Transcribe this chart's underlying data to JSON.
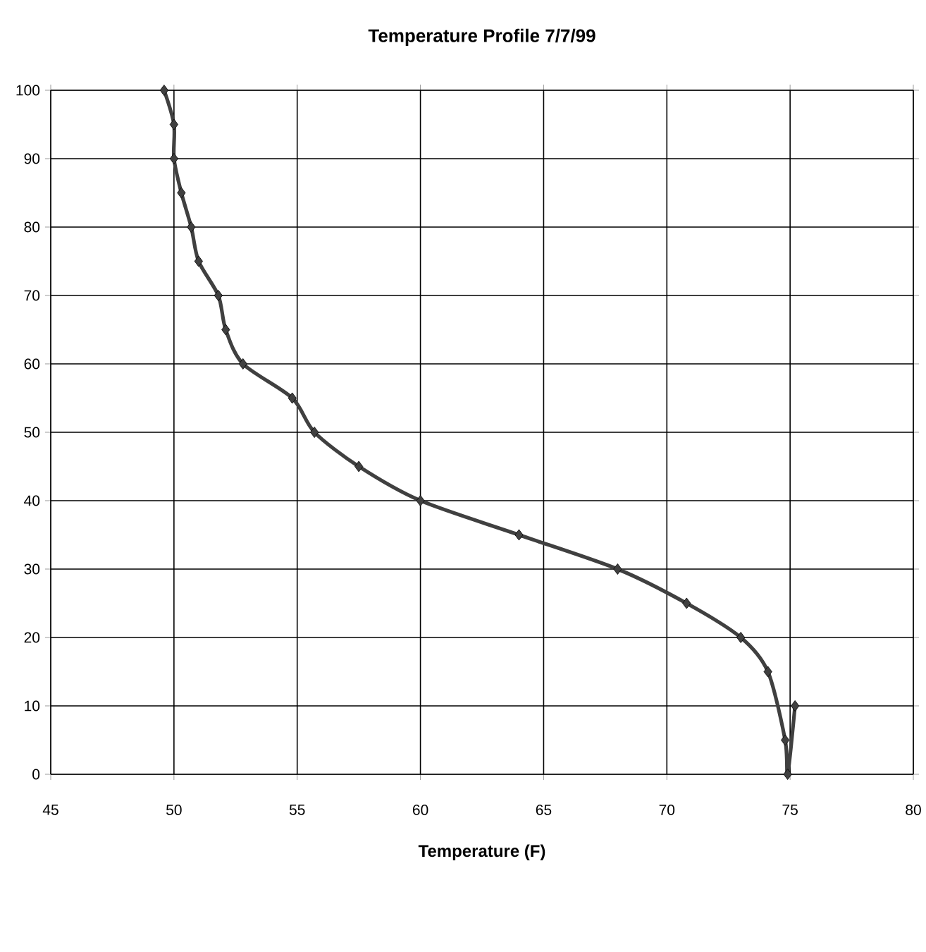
{
  "chart_data": {
    "type": "line",
    "title": "**Temperature Profile 7/7/99**",
    "xlabel": "**Temperature (F)**",
    "series": [
      {
        "color": "#404040",
        "x": [
          49.6,
          50.0,
          50.0,
          50.3,
          50.7,
          51.0,
          51.8,
          52.1,
          52.8,
          54.8,
          55.7,
          57.5,
          60.0,
          64.0,
          68.0,
          70.8,
          73.0,
          74.1,
          74.8,
          74.9,
          75.2
        ],
        "values": [
          100,
          95,
          90,
          85,
          80,
          75,
          70,
          65,
          60,
          55,
          50,
          45,
          40,
          35,
          30,
          25,
          20,
          15,
          5,
          0,
          10
        ]
      }
    ],
    "xlim": [
      45,
      80
    ],
    "xticks": [
      45,
      50,
      55,
      60,
      65,
      70,
      75,
      80
    ],
    "ylim": [
      0,
      100
    ],
    "yticks": [
      0,
      10,
      20,
      30,
      40,
      50,
      60,
      70,
      80,
      90,
      100
    ],
    "grid": true,
    "marker": "diamond",
    "line_style": "solid"
  }
}
